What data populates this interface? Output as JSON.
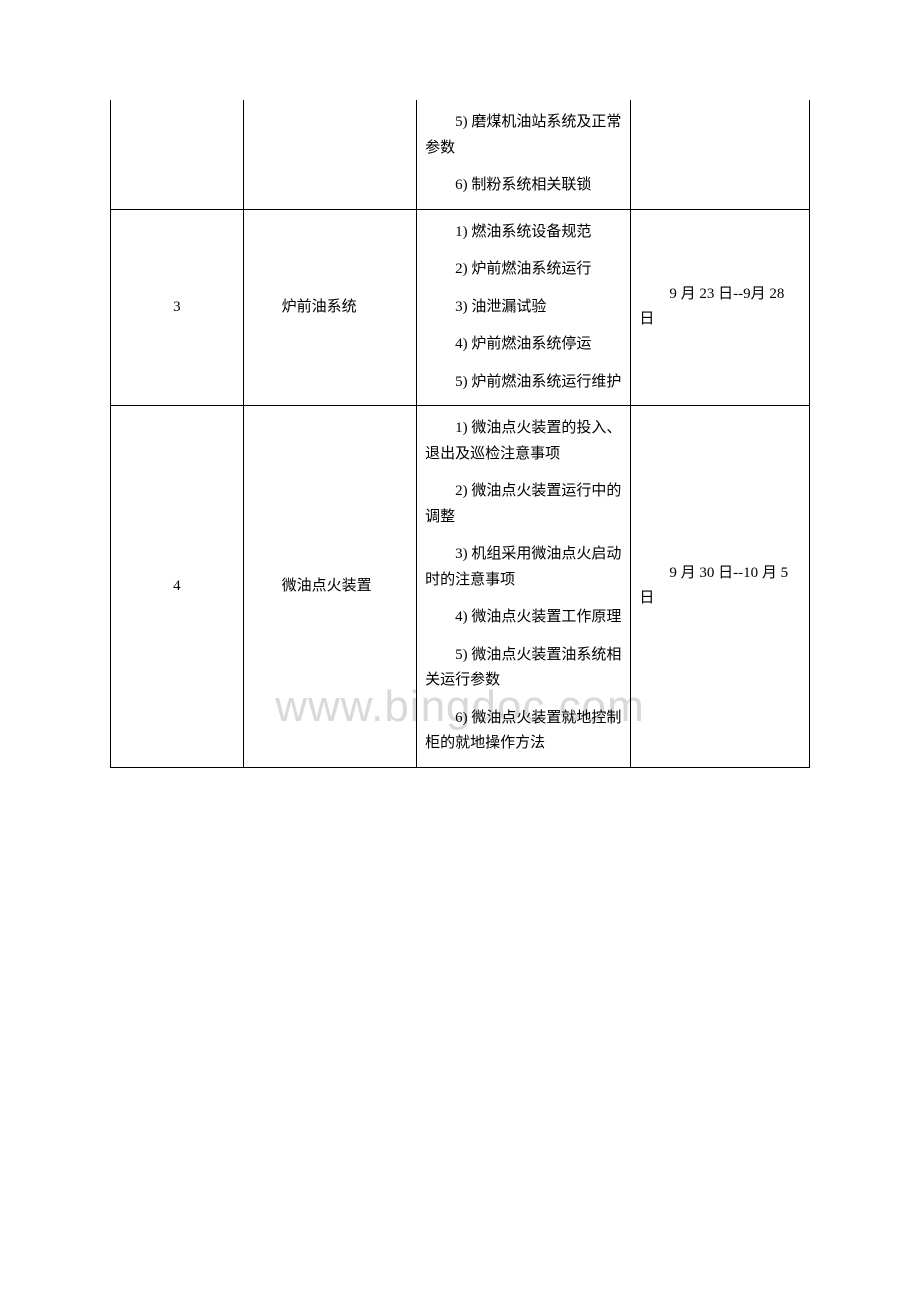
{
  "watermark": "www.bingdoc.com",
  "table": {
    "border_color": "#000000",
    "background_color": "#ffffff",
    "text_color": "#000000",
    "font_size": 15,
    "columns": {
      "num_width": 130,
      "system_width": 170,
      "items_width": 210,
      "date_width": 175
    },
    "rows": [
      {
        "num": "",
        "system": "",
        "items": [
          "5) 磨煤机油站系统及正常参数",
          "6) 制粉系统相关联锁"
        ],
        "date": "",
        "continues_from_above": true
      },
      {
        "num": "3",
        "system": "炉前油系统",
        "items": [
          "1) 燃油系统设备规范",
          "2) 炉前燃油系统运行",
          "3) 油泄漏试验",
          "4) 炉前燃油系统停运",
          "5) 炉前燃油系统运行维护"
        ],
        "date": "9 月 23 日--9月 28 日",
        "continues_from_above": false
      },
      {
        "num": "4",
        "system": "微油点火装置",
        "items": [
          "1) 微油点火装置的投入、退出及巡检注意事项",
          "2) 微油点火装置运行中的调整",
          "3) 机组采用微油点火启动时的注意事项",
          "4) 微油点火装置工作原理",
          "5) 微油点火装置油系统相关运行参数",
          "6) 微油点火装置就地控制柜的就地操作方法"
        ],
        "date": "9 月 30 日--10 月 5 日",
        "continues_from_above": false
      }
    ]
  }
}
